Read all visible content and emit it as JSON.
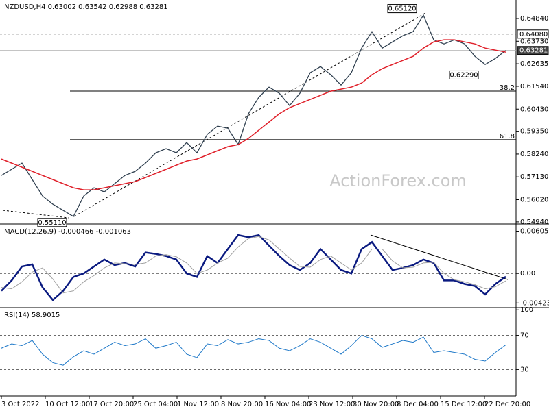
{
  "chart_data": [
    {
      "type": "line",
      "title": "NZDUSD,H4 0.63002 0.63542 0.62988 0.63281",
      "watermark": "ActionForex.com",
      "ylim": [
        0.5487,
        0.6574
      ],
      "yticks": [
        {
          "value": 0.6484,
          "label": "0.64840"
        },
        {
          "value": 0.6373,
          "label": "0.63730"
        },
        {
          "value": 0.62635,
          "label": "0.62635"
        },
        {
          "value": 0.6154,
          "label": "0.61540"
        },
        {
          "value": 0.6043,
          "label": "0.60430"
        },
        {
          "value": 0.5935,
          "label": "0.59350"
        },
        {
          "value": 0.5824,
          "label": "0.58240"
        },
        {
          "value": 0.5713,
          "label": "0.57130"
        },
        {
          "value": 0.5602,
          "label": "0.56020"
        },
        {
          "value": 0.5494,
          "label": "0.54940"
        }
      ],
      "levels": [
        {
          "value": 0.6408,
          "label": "0.64080",
          "style": "dashed"
        },
        {
          "value": 0.63281,
          "label": "0.63281",
          "style": "current"
        }
      ],
      "fib": [
        {
          "value": 0.61307,
          "label": "38.2"
        },
        {
          "value": 0.5894,
          "label": "61.8"
        }
      ],
      "annotations": [
        {
          "value": 0.6512,
          "label": "0.65120",
          "at": 41
        },
        {
          "value": 0.5511,
          "label": "0.55110",
          "at": 7
        },
        {
          "value": 0.6229,
          "label": "0.62290",
          "at": 47
        }
      ],
      "series": [
        {
          "name": "NZDUSD",
          "color": "#2f3f4f",
          "values": [
            0.572,
            0.575,
            0.578,
            0.57,
            0.562,
            0.558,
            0.555,
            0.552,
            0.562,
            0.566,
            0.564,
            0.568,
            0.572,
            0.574,
            0.578,
            0.583,
            0.585,
            0.583,
            0.588,
            0.583,
            0.592,
            0.596,
            0.595,
            0.587,
            0.602,
            0.61,
            0.615,
            0.612,
            0.606,
            0.612,
            0.622,
            0.625,
            0.621,
            0.616,
            0.622,
            0.634,
            0.642,
            0.634,
            0.637,
            0.64,
            0.642,
            0.65,
            0.638,
            0.636,
            0.638,
            0.636,
            0.63,
            0.626,
            0.629,
            0.6328
          ]
        },
        {
          "name": "SMA",
          "color": "#e0202a",
          "values": [
            0.58,
            0.578,
            0.576,
            0.574,
            0.572,
            0.57,
            0.568,
            0.566,
            0.565,
            0.565,
            0.566,
            0.567,
            0.568,
            0.569,
            0.571,
            0.573,
            0.575,
            0.577,
            0.579,
            0.58,
            0.582,
            0.584,
            0.586,
            0.587,
            0.59,
            0.594,
            0.598,
            0.602,
            0.605,
            0.607,
            0.609,
            0.611,
            0.613,
            0.614,
            0.615,
            0.617,
            0.621,
            0.624,
            0.626,
            0.628,
            0.63,
            0.634,
            0.637,
            0.638,
            0.638,
            0.637,
            0.636,
            0.634,
            0.633,
            0.632
          ]
        }
      ],
      "x_labels": [
        "3 Oct 2022",
        "10 Oct 12:00",
        "17 Oct 20:00",
        "25 Oct 04:00",
        "1 Nov 12:00",
        "8 Nov 20:00",
        "16 Nov 04:00",
        "23 Nov 12:00",
        "30 Nov 20:00",
        "8 Dec 04:00",
        "15 Dec 12:00",
        "22 Dec 20:00"
      ]
    },
    {
      "type": "line",
      "title": "MACD(12,26,9) -0.000466 -0.001063",
      "ylim": [
        -0.00479,
        0.00699
      ],
      "yticks": [
        0.006053,
        {
          "value": 0,
          "label": "0.00"
        },
        -0.004231
      ],
      "levels": [
        {
          "value": 0,
          "label": "0.00",
          "style": "dashed"
        }
      ],
      "series": [
        {
          "name": "MACD",
          "color": "#0a1a80",
          "width": 2.5,
          "values": [
            -0.0025,
            -0.001,
            0.001,
            0.0013,
            -0.002,
            -0.0038,
            -0.0025,
            -0.0005,
            0.0,
            0.001,
            0.002,
            0.0012,
            0.0015,
            0.001,
            0.003,
            0.0028,
            0.0025,
            0.002,
            0.0,
            -0.0005,
            0.0025,
            0.0015,
            0.0035,
            0.0055,
            0.0052,
            0.0055,
            0.004,
            0.0025,
            0.0012,
            0.0005,
            0.0015,
            0.0035,
            0.002,
            0.0005,
            0.0,
            0.0035,
            0.0045,
            0.0025,
            0.0005,
            0.0008,
            0.0012,
            0.002,
            0.0015,
            -0.001,
            -0.001,
            -0.0015,
            -0.0018,
            -0.003,
            -0.0015,
            -0.000466
          ]
        },
        {
          "name": "Signal",
          "color": "#a0a0a0",
          "width": 1,
          "values": [
            -0.002,
            -0.0022,
            -0.0012,
            0.0002,
            0.0008,
            -0.0008,
            -0.0028,
            -0.0025,
            -0.0012,
            -0.0003,
            0.0008,
            0.0015,
            0.0014,
            0.0013,
            0.0015,
            0.0025,
            0.0027,
            0.0024,
            0.0015,
            0.0,
            0.0005,
            0.0015,
            0.0022,
            0.0038,
            0.005,
            0.0053,
            0.0048,
            0.0035,
            0.0022,
            0.001,
            0.0009,
            0.002,
            0.0025,
            0.0015,
            0.0005,
            0.0015,
            0.0035,
            0.0035,
            0.0018,
            0.0008,
            0.0009,
            0.0015,
            0.0016,
            0.0,
            -0.0009,
            -0.0012,
            -0.0016,
            -0.0022,
            -0.0019,
            -0.001063
          ]
        }
      ]
    },
    {
      "type": "line",
      "title": "RSI(14) 58.9015",
      "ylim": [
        -1,
        101.8
      ],
      "yticks": [
        100,
        70,
        30
      ],
      "levels": [
        {
          "value": 70,
          "label": "70",
          "style": "dashed"
        },
        {
          "value": 30,
          "label": "30",
          "style": "dashed"
        }
      ],
      "series": [
        {
          "name": "RSI",
          "color": "#1e78c8",
          "width": 1,
          "values": [
            55,
            60,
            58,
            64,
            48,
            38,
            35,
            45,
            52,
            48,
            55,
            62,
            58,
            60,
            66,
            55,
            58,
            62,
            48,
            44,
            60,
            58,
            65,
            60,
            62,
            66,
            64,
            55,
            52,
            58,
            66,
            62,
            55,
            48,
            58,
            70,
            66,
            56,
            60,
            64,
            62,
            68,
            50,
            52,
            50,
            48,
            42,
            40,
            50,
            58.9015
          ]
        }
      ]
    }
  ]
}
